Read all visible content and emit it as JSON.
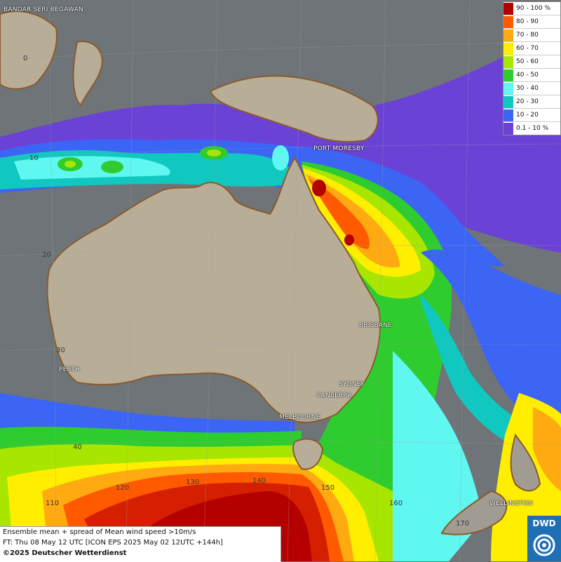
{
  "legend": [
    {
      "label": "90 - 100 %",
      "color": "#b50000"
    },
    {
      "label": "80 - 90",
      "color": "#ff5a00"
    },
    {
      "label": "70 - 80",
      "color": "#ffaa10"
    },
    {
      "label": "60 - 70",
      "color": "#ffee00"
    },
    {
      "label": "50 - 60",
      "color": "#a8e600"
    },
    {
      "label": "40 - 50",
      "color": "#2ecc2e"
    },
    {
      "label": "30 - 40",
      "color": "#5ff7ef"
    },
    {
      "label": "20 - 30",
      "color": "#10c8c0"
    },
    {
      "label": "10 - 20",
      "color": "#3c64f5"
    },
    {
      "label": "0.1 - 10 %",
      "color": "#6a42d6"
    }
  ],
  "cities": [
    {
      "name": "BANDAR SERI BEGAWAN"
    },
    {
      "name": "PORT MORESBY"
    },
    {
      "name": "BRISBANE"
    },
    {
      "name": "SYDNEY"
    },
    {
      "name": "CANBERRA"
    },
    {
      "name": "MELBOURNE"
    },
    {
      "name": "PERTH"
    },
    {
      "name": "WELLINGTON"
    }
  ],
  "grid_labels": [
    "0",
    "10",
    "20",
    "30",
    "40",
    "110",
    "120",
    "130",
    "140",
    "150",
    "160",
    "170"
  ],
  "info": {
    "line1": "Ensemble mean + spread of Mean wind speed >10m/s",
    "line2": "FT: Thu 08 May 12 UTC [ICON EPS 2025 May 02 12UTC +144h]",
    "line3": "©2025 Deutscher Wetterdienst"
  },
  "logo": {
    "text": "DWD"
  }
}
